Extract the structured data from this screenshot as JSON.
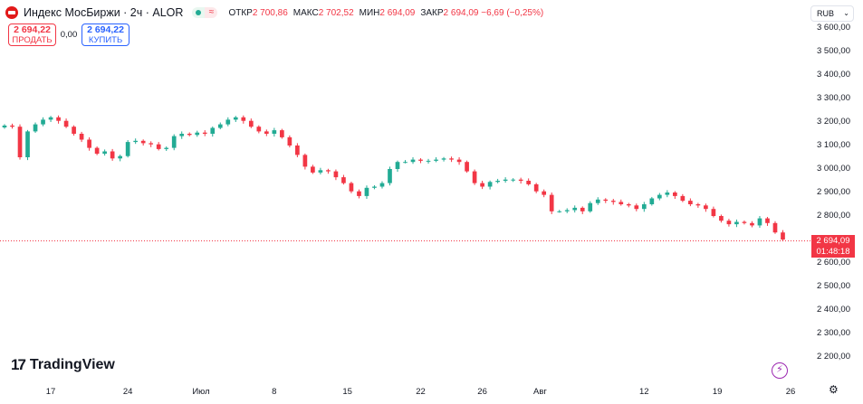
{
  "header": {
    "symbol_title": "Индекс МосБиржи · 2ч · ALOR",
    "status_wave": "≈",
    "ohlc": {
      "open_label": "ОТКР",
      "open_value": "2 700,86",
      "high_label": "МАКС",
      "high_value": "2 702,52",
      "low_label": "МИН",
      "low_value": "2 694,09",
      "close_label": "ЗАКР",
      "close_value": "2 694,09 −6,69 (−0,25%)"
    }
  },
  "trade": {
    "sell_price": "2 694,22",
    "sell_label": "ПРОДАТЬ",
    "spread": "0,00",
    "buy_price": "2 694,22",
    "buy_label": "КУПИТЬ"
  },
  "currency": {
    "selected": "RUB",
    "icon": "chevron-down-icon"
  },
  "price_tag": {
    "price": "2 694,09",
    "countdown": "01:48:18"
  },
  "brand": {
    "name": "TradingView",
    "mark": "17"
  },
  "icons": {
    "bolt": "lightning-icon",
    "gear": "gear-icon"
  },
  "colors": {
    "up": "#22ab94",
    "down": "#f23645",
    "accent": "#2962ff"
  },
  "chart_data": {
    "type": "candlestick",
    "y_axis": {
      "range": [
        2150,
        3620
      ],
      "ticks": [
        3600,
        3500,
        3400,
        3300,
        3200,
        3100,
        3000,
        2900,
        2800,
        2700,
        2600,
        2500,
        2400,
        2300,
        2200
      ],
      "tick_labels": [
        "3 600,00",
        "3 500,00",
        "3 400,00",
        "3 300,00",
        "3 200,00",
        "3 100,00",
        "3 000,00",
        "2 900,00",
        "2 800,00",
        "",
        "2 600,00",
        "2 500,00",
        "2 400,00",
        "2 300,00",
        "2 200,00"
      ]
    },
    "x_axis": {
      "range": [
        0,
        102
      ],
      "ticks": [
        {
          "label": "17",
          "x": 6
        },
        {
          "label": "24",
          "x": 16
        },
        {
          "label": "Июл",
          "x": 25.5
        },
        {
          "label": "8",
          "x": 35
        },
        {
          "label": "15",
          "x": 44.5
        },
        {
          "label": "22",
          "x": 54
        },
        {
          "label": "26",
          "x": 62
        },
        {
          "label": "Авг",
          "x": 69.5
        },
        {
          "label": "12",
          "x": 83
        },
        {
          "label": "19",
          "x": 92.5
        },
        {
          "label": "26",
          "x": 102
        }
      ]
    },
    "last_price": 2694.09,
    "grid": false,
    "closes": [
      3185,
      3180,
      3050,
      3160,
      3190,
      3210,
      3220,
      3205,
      3180,
      3150,
      3125,
      3090,
      3065,
      3075,
      3045,
      3055,
      3115,
      3120,
      3110,
      3105,
      3085,
      3090,
      3140,
      3150,
      3145,
      3155,
      3150,
      3175,
      3190,
      3210,
      3220,
      3205,
      3180,
      3160,
      3150,
      3165,
      3135,
      3100,
      3060,
      3010,
      2985,
      2995,
      2990,
      2965,
      2940,
      2905,
      2885,
      2920,
      2925,
      2940,
      3000,
      3030,
      3030,
      3040,
      3035,
      3035,
      3040,
      3045,
      3040,
      3030,
      2990,
      2940,
      2925,
      2945,
      2950,
      2955,
      2955,
      2950,
      2935,
      2905,
      2890,
      2820,
      2820,
      2825,
      2835,
      2820,
      2855,
      2870,
      2865,
      2860,
      2850,
      2845,
      2830,
      2850,
      2875,
      2890,
      2900,
      2885,
      2865,
      2850,
      2845,
      2830,
      2800,
      2780,
      2765,
      2775,
      2770,
      2760,
      2790,
      2770,
      2730,
      2700
    ]
  }
}
